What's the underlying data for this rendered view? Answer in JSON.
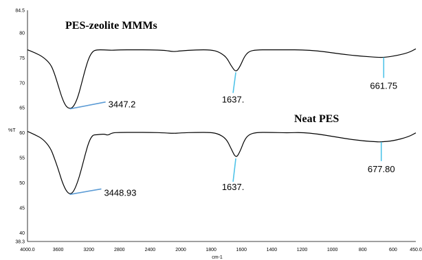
{
  "chart_data": {
    "type": "line",
    "xlabel": "cm-1",
    "ylabel": "%T",
    "xlim": [
      4000.0,
      450.0
    ],
    "ylim": [
      38.3,
      84.5
    ],
    "x_ticks": [
      "4000.0",
      "3600",
      "3200",
      "2800",
      "2400",
      "2000",
      "1800",
      "1600",
      "1400",
      "1200",
      "1000",
      "800",
      "600",
      "450.0"
    ],
    "y_ticks": [
      "84.5",
      "80",
      "75",
      "70",
      "65",
      "60",
      "55",
      "50",
      "45",
      "40",
      "38.3"
    ],
    "series": [
      {
        "name": "PES-zeolite MMMs",
        "points": [
          [
            4000,
            76.6
          ],
          [
            3900,
            76.0
          ],
          [
            3800,
            75.2
          ],
          [
            3700,
            73.8
          ],
          [
            3650,
            72.0
          ],
          [
            3600,
            69.5
          ],
          [
            3550,
            67.0
          ],
          [
            3500,
            65.3
          ],
          [
            3447.2,
            64.8
          ],
          [
            3400,
            65.2
          ],
          [
            3350,
            66.8
          ],
          [
            3300,
            69.5
          ],
          [
            3250,
            72.5
          ],
          [
            3200,
            75.0
          ],
          [
            3150,
            76.3
          ],
          [
            3100,
            76.6
          ],
          [
            3000,
            76.6
          ],
          [
            2900,
            76.5
          ],
          [
            2800,
            76.6
          ],
          [
            2600,
            76.6
          ],
          [
            2400,
            76.6
          ],
          [
            2200,
            76.5
          ],
          [
            2100,
            76.2
          ],
          [
            2000,
            76.4
          ],
          [
            1900,
            76.6
          ],
          [
            1800,
            76.6
          ],
          [
            1750,
            76.2
          ],
          [
            1700,
            75.2
          ],
          [
            1670,
            73.5
          ],
          [
            1637,
            72.1
          ],
          [
            1610,
            73.2
          ],
          [
            1580,
            75.3
          ],
          [
            1550,
            76.3
          ],
          [
            1500,
            76.6
          ],
          [
            1400,
            76.6
          ],
          [
            1300,
            76.6
          ],
          [
            1200,
            76.6
          ],
          [
            1100,
            76.4
          ],
          [
            1000,
            76.0
          ],
          [
            900,
            75.6
          ],
          [
            800,
            75.3
          ],
          [
            700,
            75.1
          ],
          [
            661.75,
            75.1
          ],
          [
            600,
            75.3
          ],
          [
            500,
            76.0
          ],
          [
            450,
            76.8
          ]
        ]
      },
      {
        "name": "Neat PES",
        "points": [
          [
            4000,
            60.3
          ],
          [
            3900,
            59.6
          ],
          [
            3800,
            58.8
          ],
          [
            3700,
            57.0
          ],
          [
            3650,
            55.0
          ],
          [
            3600,
            52.8
          ],
          [
            3550,
            50.3
          ],
          [
            3500,
            48.5
          ],
          [
            3448.93,
            47.7
          ],
          [
            3400,
            48.2
          ],
          [
            3350,
            50.0
          ],
          [
            3300,
            52.5
          ],
          [
            3250,
            55.5
          ],
          [
            3200,
            58.2
          ],
          [
            3150,
            59.6
          ],
          [
            3100,
            59.6
          ],
          [
            3000,
            59.8
          ],
          [
            2950,
            59.5
          ],
          [
            2900,
            60.0
          ],
          [
            2800,
            60.1
          ],
          [
            2600,
            60.1
          ],
          [
            2400,
            60.1
          ],
          [
            2200,
            60.0
          ],
          [
            2100,
            59.9
          ],
          [
            2000,
            60.0
          ],
          [
            1900,
            60.1
          ],
          [
            1800,
            60.1
          ],
          [
            1750,
            59.8
          ],
          [
            1700,
            58.8
          ],
          [
            1670,
            57.0
          ],
          [
            1637,
            54.9
          ],
          [
            1610,
            56.2
          ],
          [
            1580,
            58.6
          ],
          [
            1550,
            59.7
          ],
          [
            1500,
            60.1
          ],
          [
            1400,
            60.1
          ],
          [
            1300,
            60.0
          ],
          [
            1200,
            60.1
          ],
          [
            1100,
            59.8
          ],
          [
            1000,
            59.3
          ],
          [
            900,
            58.8
          ],
          [
            800,
            58.4
          ],
          [
            700,
            58.2
          ],
          [
            677.8,
            58.2
          ],
          [
            600,
            58.4
          ],
          [
            500,
            59.2
          ],
          [
            450,
            60.0
          ]
        ]
      }
    ],
    "labels": {
      "pes_zeolite": "PES-zeolite MMMs",
      "neat_pes": "Neat PES"
    },
    "annotations": [
      {
        "text": "3447.2",
        "x": 3447.2,
        "y": 64.8,
        "color": "#5b9bd5"
      },
      {
        "text": "1637.",
        "x": 1637,
        "y": 72.1,
        "color": "#4fc3e8"
      },
      {
        "text": "661.75",
        "x": 661.75,
        "y": 75.1,
        "color": "#4fc3e8"
      },
      {
        "text": "3448.93",
        "x": 3448.93,
        "y": 47.7,
        "color": "#5b9bd5"
      },
      {
        "text": "1637.",
        "x": 1637,
        "y": 54.9,
        "color": "#4fc3e8"
      },
      {
        "text": "677.80",
        "x": 677.8,
        "y": 58.2,
        "color": "#4fc3e8"
      }
    ],
    "grid": false,
    "colors": {
      "line": "#000000",
      "leader_blue": "#5b9bd5",
      "leader_cyan": "#4fc3e8"
    }
  }
}
